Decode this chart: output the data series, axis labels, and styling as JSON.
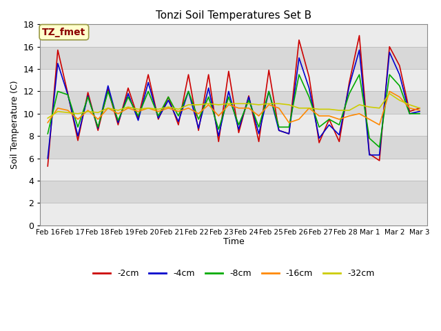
{
  "title": "Tonzi Soil Temperatures Set B",
  "xlabel": "Time",
  "ylabel": "Soil Temperature (C)",
  "annotation": "TZ_fmet",
  "annotation_color": "#8B0000",
  "annotation_bg": "#FFFFCC",
  "annotation_border": "#999944",
  "ylim": [
    0,
    18
  ],
  "yticks": [
    0,
    2,
    4,
    6,
    8,
    10,
    12,
    14,
    16,
    18
  ],
  "x_labels": [
    "Feb 16",
    "Feb 17",
    "Feb 18",
    "Feb 19",
    "Feb 20",
    "Feb 21",
    "Feb 22",
    "Feb 23",
    "Feb 24",
    "Feb 25",
    "Feb 26",
    "Feb 27",
    "Feb 28",
    "Mar 1",
    "Mar 2",
    "Mar 3"
  ],
  "series_colors": {
    "-2cm": "#CC0000",
    "-4cm": "#0000CC",
    "-8cm": "#00AA00",
    "-16cm": "#FF8800",
    "-32cm": "#CCCC00"
  },
  "lw": 1.2,
  "data_2cm": [
    5.3,
    15.7,
    11.8,
    7.6,
    11.9,
    8.5,
    12.2,
    9.0,
    12.3,
    9.6,
    13.5,
    9.5,
    11.5,
    9.0,
    13.5,
    8.5,
    13.5,
    7.5,
    13.8,
    8.3,
    11.6,
    7.5,
    13.9,
    8.5,
    8.2,
    16.6,
    13.3,
    7.4,
    9.5,
    7.5,
    12.8,
    17.0,
    6.4,
    5.8,
    16.0,
    14.3,
    10.2,
    10.5
  ],
  "data_4cm": [
    6.0,
    14.5,
    11.7,
    8.0,
    11.6,
    8.7,
    12.5,
    9.2,
    11.8,
    9.4,
    12.8,
    9.6,
    11.2,
    9.3,
    12.0,
    8.7,
    12.3,
    8.0,
    12.0,
    8.6,
    11.5,
    8.2,
    12.0,
    8.5,
    8.2,
    15.0,
    12.3,
    7.8,
    9.0,
    8.1,
    12.5,
    15.7,
    6.3,
    6.3,
    15.5,
    13.5,
    10.0,
    10.2
  ],
  "data_8cm": [
    8.2,
    12.0,
    11.7,
    8.8,
    11.5,
    8.8,
    12.0,
    9.4,
    11.5,
    9.8,
    12.0,
    9.8,
    11.5,
    9.8,
    12.0,
    9.5,
    11.5,
    8.6,
    11.5,
    9.0,
    11.2,
    8.8,
    12.0,
    8.8,
    8.8,
    13.5,
    11.5,
    8.8,
    9.5,
    9.0,
    11.8,
    13.5,
    7.8,
    7.0,
    13.5,
    12.5,
    10.0,
    10.0
  ],
  "data_16cm": [
    9.2,
    10.5,
    10.3,
    9.5,
    10.3,
    9.5,
    10.5,
    10.0,
    10.5,
    10.2,
    10.5,
    10.2,
    10.5,
    10.2,
    10.5,
    10.0,
    10.8,
    9.8,
    10.8,
    10.5,
    10.5,
    9.8,
    10.8,
    10.5,
    9.2,
    9.5,
    10.5,
    9.8,
    9.8,
    9.5,
    9.8,
    10.0,
    9.5,
    9.0,
    12.0,
    11.5,
    10.5,
    10.3
  ],
  "data_32cm": [
    9.6,
    10.2,
    10.1,
    10.0,
    10.2,
    10.1,
    10.5,
    10.3,
    10.6,
    10.4,
    10.5,
    10.4,
    10.6,
    10.4,
    10.8,
    10.8,
    10.9,
    10.8,
    10.9,
    10.9,
    10.9,
    10.8,
    10.9,
    10.9,
    10.8,
    10.5,
    10.5,
    10.4,
    10.4,
    10.3,
    10.3,
    10.8,
    10.6,
    10.5,
    11.8,
    11.2,
    10.8,
    10.5
  ],
  "bg_color": "#D8D8D8",
  "band_white": "#EBEBEB",
  "plot_bg": "#FFFFFF",
  "n_pts": 38,
  "n_days": 16
}
